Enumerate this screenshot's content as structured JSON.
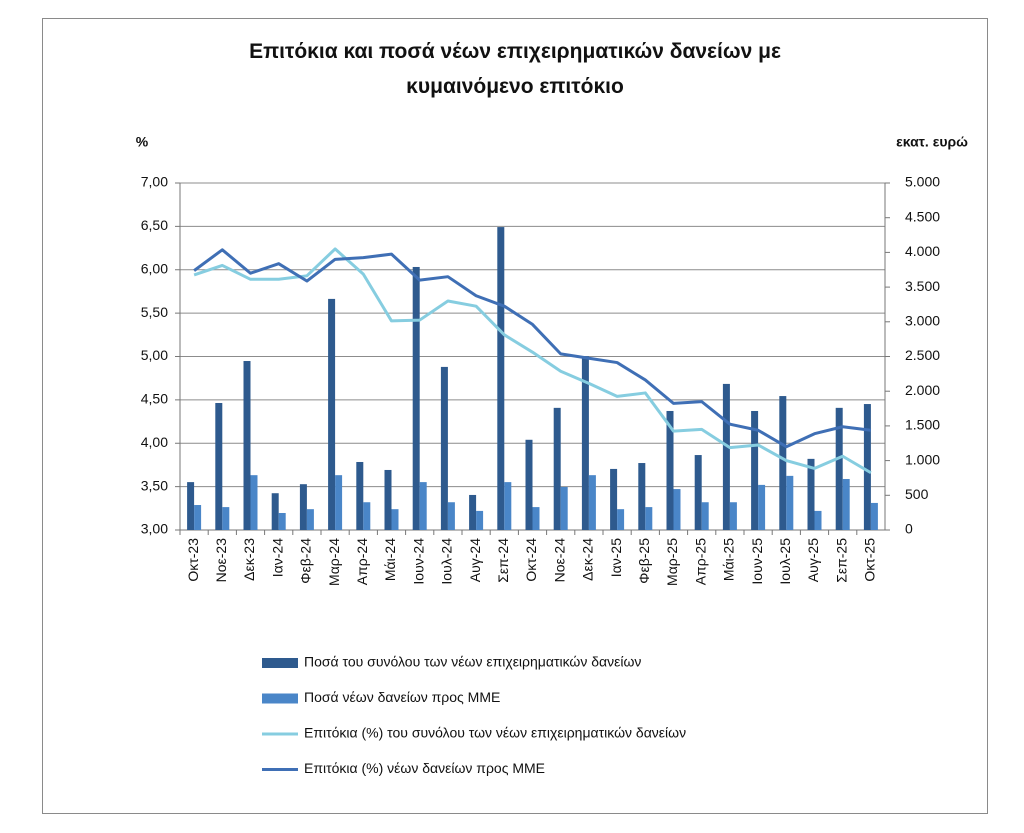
{
  "chart_data": {
    "type": "combo",
    "title": "Επιτόκια και ποσά νέων επιχειρηματικών δανείων με κυμαινόμενο επιτόκιο",
    "ylabel": "%",
    "y2label": "εκατ. ευρώ",
    "categories": [
      "Οκτ-23",
      "Νοε-23",
      "Δεκ-23",
      "Ιαν-24",
      "Φεβ-24",
      "Μαρ-24",
      "Απρ-24",
      "Μάι-24",
      "Ιουν-24",
      "Ιουλ-24",
      "Αυγ-24",
      "Σεπ-24",
      "Οκτ-24",
      "Νοε-24",
      "Δεκ-24",
      "Ιαν-25",
      "Φεβ-25",
      "Μαρ-25",
      "Απρ-25",
      "Μάι-25",
      "Ιουν-25",
      "Ιουλ-25",
      "Αυγ-25",
      "Σεπ-25",
      "Οκτ-25"
    ],
    "series": [
      {
        "name": "Ποσά του συνόλου των νέων επιχειρηματικών δανείων",
        "type": "bar",
        "axis": "y2",
        "color": "#2e5a8e",
        "values": [
          690,
          1830,
          2435,
          530,
          660,
          3330,
          980,
          865,
          3790,
          2350,
          505,
          4365,
          1300,
          1760,
          2505,
          880,
          965,
          1715,
          1080,
          2105,
          1715,
          1930,
          1025,
          1760,
          1815
        ]
      },
      {
        "name": "Ποσά νέων δανείων προς ΜΜΕ",
        "type": "bar",
        "axis": "y2",
        "color": "#4a86c8",
        "values": [
          360,
          330,
          790,
          245,
          300,
          790,
          400,
          300,
          690,
          400,
          275,
          690,
          330,
          620,
          790,
          300,
          330,
          590,
          400,
          400,
          650,
          780,
          275,
          735,
          390
        ]
      },
      {
        "name": "Επιτόκια (%) του συνόλου των νέων επιχειρηματικών δανείων",
        "type": "line",
        "color": "#86cde0",
        "values": [
          5.94,
          6.05,
          5.89,
          5.89,
          5.93,
          6.24,
          5.95,
          5.41,
          5.42,
          5.64,
          5.58,
          5.25,
          5.05,
          4.83,
          4.69,
          4.54,
          4.58,
          4.14,
          4.16,
          3.95,
          3.98,
          3.8,
          3.71,
          3.85,
          3.66
        ]
      },
      {
        "name": "Επιτόκια (%) νέων δανείων προς ΜΜΕ",
        "type": "line",
        "color": "#3f6fb5",
        "values": [
          5.99,
          6.23,
          5.96,
          6.07,
          5.87,
          6.12,
          6.14,
          6.18,
          5.88,
          5.92,
          5.7,
          5.58,
          5.37,
          5.03,
          4.98,
          4.93,
          4.73,
          4.46,
          4.48,
          4.22,
          4.15,
          3.96,
          4.11,
          4.19,
          4.15
        ]
      }
    ],
    "ylim": [
      3,
      7
    ],
    "yticks": [
      {
        "value": 3,
        "label": "3,00"
      },
      {
        "value": 3.5,
        "label": "3,50"
      },
      {
        "value": 4,
        "label": "4,00"
      },
      {
        "value": 4.5,
        "label": "4,50"
      },
      {
        "value": 5,
        "label": "5,00"
      },
      {
        "value": 5.5,
        "label": "5,50"
      },
      {
        "value": 6,
        "label": "6,00"
      },
      {
        "value": 6.5,
        "label": "6,50"
      },
      {
        "value": 7,
        "label": "7,00"
      }
    ],
    "y2lim": [
      0,
      5000
    ],
    "y2ticks": [
      0,
      500,
      {
        "value": 1000,
        "label": "1.000"
      },
      {
        "value": 1500,
        "label": "1.500"
      },
      {
        "value": 2000,
        "label": "2.000"
      },
      {
        "value": 2500,
        "label": "2.500"
      },
      {
        "value": 3000,
        "label": "3.000"
      },
      {
        "value": 3500,
        "label": "3.500"
      },
      {
        "value": 4000,
        "label": "4.000"
      },
      {
        "value": 4500,
        "label": "4.500"
      },
      {
        "value": 5000,
        "label": "5.000"
      }
    ],
    "grid": true,
    "legend": "bottom"
  }
}
